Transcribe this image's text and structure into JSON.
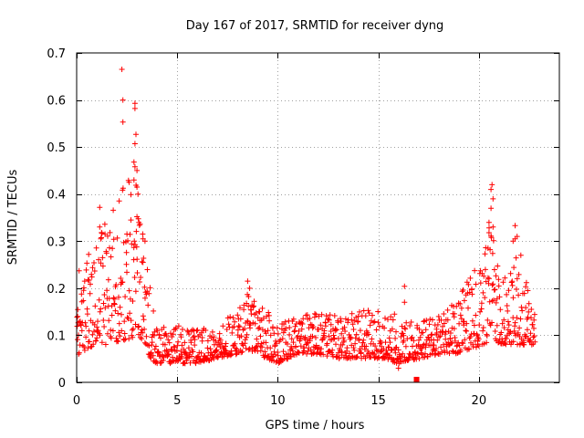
{
  "chart_data": {
    "type": "scatter",
    "title": "Day 167 of 2017, SRMTID for receiver dyng",
    "xlabel": "GPS time / hours",
    "ylabel": "SRMTID / TECUs",
    "xlim": [
      0,
      24
    ],
    "ylim": [
      0,
      0.7
    ],
    "x_ticks": [
      0,
      5,
      10,
      15,
      20
    ],
    "x_tick_labels": [
      "0",
      "5",
      "10",
      "15",
      "20"
    ],
    "y_ticks": [
      0,
      0.1,
      0.2,
      0.3,
      0.4,
      0.5,
      0.6,
      0.7
    ],
    "y_tick_labels": [
      "0",
      "0.1",
      "0.2",
      "0.3",
      "0.4",
      "0.5",
      "0.6",
      "0.7"
    ],
    "grid": true,
    "marker": "plus",
    "color": "#ff0000",
    "series": [
      {
        "name": "SRMTID",
        "envelope": [
          [
            0.0,
            0.06,
            0.24
          ],
          [
            0.5,
            0.07,
            0.26
          ],
          [
            1.0,
            0.08,
            0.3
          ],
          [
            1.5,
            0.08,
            0.35
          ],
          [
            2.0,
            0.08,
            0.38
          ],
          [
            2.5,
            0.09,
            0.45
          ],
          [
            3.0,
            0.1,
            0.42
          ],
          [
            3.3,
            0.09,
            0.32
          ],
          [
            3.6,
            0.05,
            0.22
          ],
          [
            4.0,
            0.04,
            0.12
          ],
          [
            5.0,
            0.04,
            0.12
          ],
          [
            6.0,
            0.04,
            0.12
          ],
          [
            7.0,
            0.05,
            0.12
          ],
          [
            8.0,
            0.06,
            0.16
          ],
          [
            8.5,
            0.07,
            0.19
          ],
          [
            9.0,
            0.06,
            0.17
          ],
          [
            10.0,
            0.04,
            0.13
          ],
          [
            11.0,
            0.06,
            0.14
          ],
          [
            12.0,
            0.06,
            0.15
          ],
          [
            13.0,
            0.05,
            0.14
          ],
          [
            14.0,
            0.05,
            0.15
          ],
          [
            15.0,
            0.05,
            0.16
          ],
          [
            16.0,
            0.04,
            0.13
          ],
          [
            17.0,
            0.05,
            0.13
          ],
          [
            18.0,
            0.06,
            0.14
          ],
          [
            18.8,
            0.06,
            0.17
          ],
          [
            19.5,
            0.07,
            0.22
          ],
          [
            20.3,
            0.08,
            0.28
          ],
          [
            20.7,
            0.1,
            0.38
          ],
          [
            21.0,
            0.08,
            0.24
          ],
          [
            21.5,
            0.08,
            0.22
          ],
          [
            22.0,
            0.08,
            0.3
          ],
          [
            22.5,
            0.08,
            0.18
          ],
          [
            22.8,
            0.08,
            0.16
          ]
        ],
        "points": [
          [
            2.25,
            0.665
          ],
          [
            2.3,
            0.6
          ],
          [
            2.3,
            0.553
          ],
          [
            2.9,
            0.593
          ],
          [
            2.9,
            0.582
          ],
          [
            2.95,
            0.527
          ],
          [
            2.9,
            0.507
          ],
          [
            2.85,
            0.468
          ],
          [
            2.9,
            0.458
          ],
          [
            3.0,
            0.45
          ],
          [
            2.85,
            0.43
          ],
          [
            3.0,
            0.415
          ],
          [
            3.05,
            0.4
          ],
          [
            1.15,
            0.372
          ],
          [
            2.7,
            0.345
          ],
          [
            3.0,
            0.352
          ],
          [
            3.1,
            0.34
          ],
          [
            1.15,
            0.33
          ],
          [
            2.5,
            0.315
          ],
          [
            3.3,
            0.305
          ],
          [
            3.4,
            0.3
          ],
          [
            3.3,
            0.255
          ],
          [
            1.2,
            0.305
          ],
          [
            0.6,
            0.272
          ],
          [
            20.65,
            0.42
          ],
          [
            20.6,
            0.41
          ],
          [
            20.7,
            0.39
          ],
          [
            20.6,
            0.37
          ],
          [
            20.5,
            0.34
          ],
          [
            20.7,
            0.33
          ],
          [
            20.5,
            0.318
          ],
          [
            21.8,
            0.333
          ],
          [
            21.9,
            0.31
          ],
          [
            21.8,
            0.305
          ],
          [
            21.7,
            0.3
          ],
          [
            16.3,
            0.204
          ],
          [
            16.3,
            0.17
          ],
          [
            8.5,
            0.215
          ],
          [
            8.6,
            0.2
          ],
          [
            0.05,
            0.14
          ],
          [
            15.8,
            0.145
          ],
          [
            16.0,
            0.03
          ],
          [
            16.2,
            0.045
          ],
          [
            0.1,
            0.06
          ]
        ],
        "square_markers": [
          [
            16.9,
            0.002
          ]
        ]
      }
    ]
  }
}
